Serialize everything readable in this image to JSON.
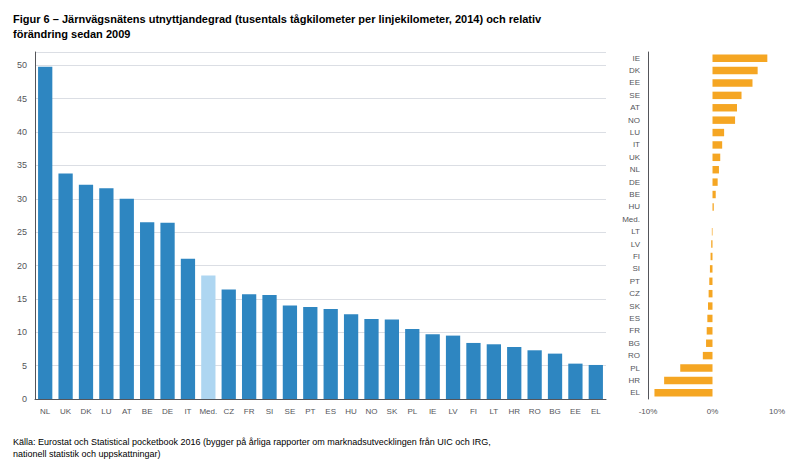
{
  "chart_data": [
    {
      "type": "bar",
      "title": "Figur 6 – Järnvägsnätens utnyttjandegrad (tusentals tågkilometer per linjekilometer, 2014) och relativ\nförändring sedan 2009",
      "annotations": [
        "Källa: Eurostat och Statistical pocketbook 2016 (bygger på årliga rapporter om marknadsutvecklingen från UIC och IRG,\nnationell statistik och uppskattningar)"
      ],
      "categories": [
        "NL",
        "UK",
        "DK",
        "LU",
        "AT",
        "BE",
        "DE",
        "IT",
        "Med.",
        "CZ",
        "FR",
        "SI",
        "SE",
        "PT",
        "ES",
        "HU",
        "NO",
        "SK",
        "PL",
        "IE",
        "LV",
        "FI",
        "LT",
        "HR",
        "RO",
        "BG",
        "EE",
        "EL"
      ],
      "values": [
        49.8,
        33.8,
        32.1,
        31.6,
        30.0,
        26.5,
        26.4,
        21.0,
        18.5,
        16.4,
        15.7,
        15.6,
        14.0,
        13.8,
        13.5,
        12.7,
        12.0,
        11.9,
        10.5,
        9.7,
        9.5,
        8.4,
        8.2,
        7.8,
        7.3,
        6.8,
        5.3,
        5.1
      ],
      "colors": [
        "#2E86C1",
        "#2E86C1",
        "#2E86C1",
        "#2E86C1",
        "#2E86C1",
        "#2E86C1",
        "#2E86C1",
        "#2E86C1",
        "#AED6F1",
        "#2E86C1",
        "#2E86C1",
        "#2E86C1",
        "#2E86C1",
        "#2E86C1",
        "#2E86C1",
        "#2E86C1",
        "#2E86C1",
        "#2E86C1",
        "#2E86C1",
        "#2E86C1",
        "#2E86C1",
        "#2E86C1",
        "#2E86C1",
        "#2E86C1",
        "#2E86C1",
        "#2E86C1",
        "#2E86C1",
        "#2E86C1"
      ],
      "ylim": [
        0,
        52
      ],
      "yticks": [
        0,
        5,
        10,
        15,
        20,
        25,
        30,
        35,
        40,
        45,
        50
      ],
      "grid": true
    },
    {
      "type": "bar",
      "orientation": "horizontal",
      "categories": [
        "IE",
        "DK",
        "EE",
        "SE",
        "AT",
        "NO",
        "LU",
        "IT",
        "UK",
        "NL",
        "DE",
        "BE",
        "HU",
        "Med.",
        "LT",
        "LV",
        "FI",
        "SI",
        "PT",
        "CZ",
        "SK",
        "ES",
        "FR",
        "BG",
        "RO",
        "PL",
        "HR",
        "EL"
      ],
      "values": [
        8.5,
        7.0,
        6.2,
        4.5,
        3.8,
        3.5,
        1.8,
        1.5,
        1.2,
        1.0,
        0.8,
        0.5,
        0.2,
        0.0,
        -0.1,
        -0.2,
        -0.3,
        -0.4,
        -0.5,
        -0.6,
        -0.7,
        -0.8,
        -0.9,
        -1.0,
        -1.5,
        -5.0,
        -7.5,
        -9.0
      ],
      "colors": [
        "#F5A623",
        "#F5A623",
        "#F5A623",
        "#F5A623",
        "#F5A623",
        "#F5A623",
        "#F5A623",
        "#F5A623",
        "#F5A623",
        "#F5A623",
        "#F5A623",
        "#F5A623",
        "#F5A623",
        "#AAAAAA",
        "#F5A623",
        "#F5A623",
        "#F5A623",
        "#F5A623",
        "#F5A623",
        "#F5A623",
        "#F5A623",
        "#F5A623",
        "#F5A623",
        "#F5A623",
        "#F5A623",
        "#F5A623",
        "#F5A623",
        "#F5A623"
      ],
      "xlim": [
        -10,
        10
      ],
      "xticks": [
        {
          "value": -10,
          "label": "-10%"
        },
        {
          "value": 0,
          "label": "0%"
        },
        {
          "value": 10,
          "label": "10%"
        }
      ],
      "grid": false
    }
  ]
}
